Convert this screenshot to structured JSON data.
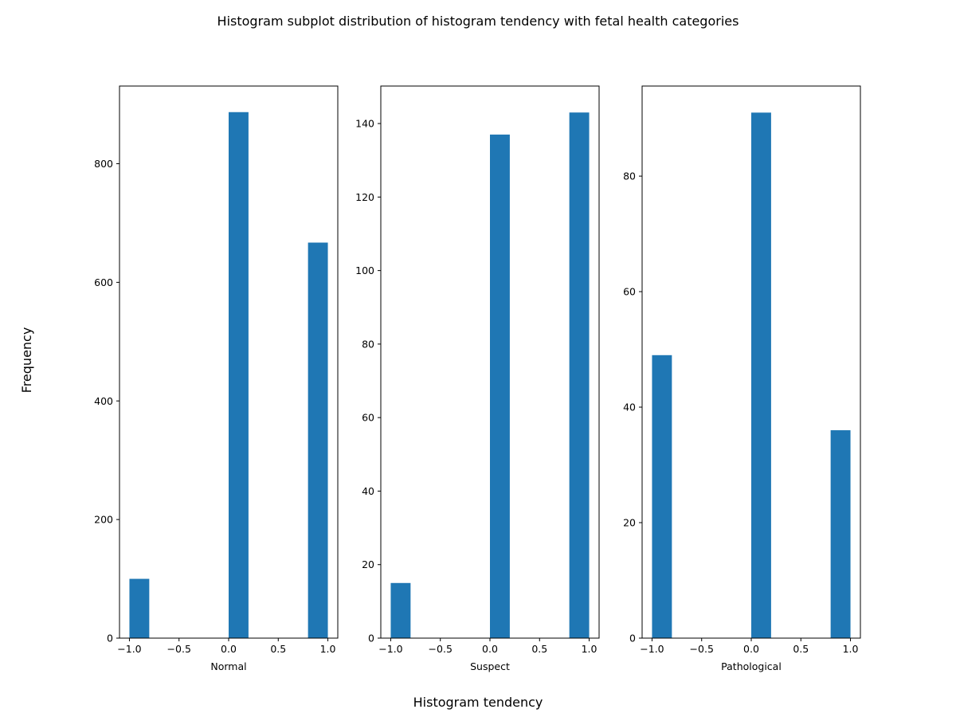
{
  "figure": {
    "suptitle": "Histogram subplot distribution of histogram tendency with fetal health categories",
    "supxlabel": "Histogram tendency",
    "supylabel": "Frequency"
  },
  "colors": {
    "bar": "#1f77b4",
    "axis": "#000000",
    "background": "#ffffff"
  },
  "chart_data": [
    {
      "type": "bar",
      "title": "",
      "xlabel": "Normal",
      "ylabel": "",
      "xlim": [
        -1.1,
        1.1
      ],
      "ylim": [
        0,
        931
      ],
      "xticks": [
        -1.0,
        -0.5,
        0.0,
        0.5,
        1.0
      ],
      "xtick_labels": [
        "−1.0",
        "−0.5",
        "0.0",
        "0.5",
        "1.0"
      ],
      "yticks": [
        0,
        200,
        400,
        600,
        800
      ],
      "ytick_labels": [
        "0",
        "200",
        "400",
        "600",
        "800"
      ],
      "bins": [
        {
          "x0": -1.0,
          "x1": -0.8,
          "count": 100
        },
        {
          "x0": 0.0,
          "x1": 0.2,
          "count": 887
        },
        {
          "x0": 0.8,
          "x1": 1.0,
          "count": 667
        }
      ],
      "grid": false,
      "legend": "none"
    },
    {
      "type": "bar",
      "title": "",
      "xlabel": "Suspect",
      "ylabel": "",
      "xlim": [
        -1.1,
        1.1
      ],
      "ylim": [
        0,
        150.2
      ],
      "xticks": [
        -1.0,
        -0.5,
        0.0,
        0.5,
        1.0
      ],
      "xtick_labels": [
        "−1.0",
        "−0.5",
        "0.0",
        "0.5",
        "1.0"
      ],
      "yticks": [
        0,
        20,
        40,
        60,
        80,
        100,
        120,
        140
      ],
      "ytick_labels": [
        "0",
        "20",
        "40",
        "60",
        "80",
        "100",
        "120",
        "140"
      ],
      "bins": [
        {
          "x0": -1.0,
          "x1": -0.8,
          "count": 15
        },
        {
          "x0": 0.0,
          "x1": 0.2,
          "count": 137
        },
        {
          "x0": 0.8,
          "x1": 1.0,
          "count": 143
        }
      ],
      "grid": false,
      "legend": "none"
    },
    {
      "type": "bar",
      "title": "",
      "xlabel": "Pathological",
      "ylabel": "",
      "xlim": [
        -1.1,
        1.1
      ],
      "ylim": [
        0,
        95.6
      ],
      "xticks": [
        -1.0,
        -0.5,
        0.0,
        0.5,
        1.0
      ],
      "xtick_labels": [
        "−1.0",
        "−0.5",
        "0.0",
        "0.5",
        "1.0"
      ],
      "yticks": [
        0,
        20,
        40,
        60,
        80
      ],
      "ytick_labels": [
        "0",
        "20",
        "40",
        "60",
        "80"
      ],
      "bins": [
        {
          "x0": -1.0,
          "x1": -0.8,
          "count": 49
        },
        {
          "x0": 0.0,
          "x1": 0.2,
          "count": 91
        },
        {
          "x0": 0.8,
          "x1": 1.0,
          "count": 36
        }
      ],
      "grid": false,
      "legend": "none"
    }
  ]
}
